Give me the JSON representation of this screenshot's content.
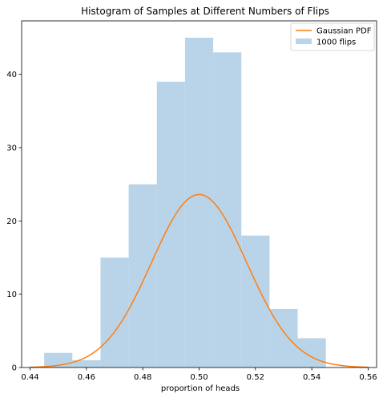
{
  "chart_data": {
    "type": "bar",
    "title": "Histogram of Samples at Different Numbers of Flips",
    "xlabel": "proportion of heads",
    "ylabel": "",
    "xlim": [
      0.437,
      0.563
    ],
    "ylim": [
      0,
      47.3
    ],
    "x_ticks": [
      0.44,
      0.46,
      0.48,
      0.5,
      0.52,
      0.54,
      0.56
    ],
    "x_tick_labels": [
      "0.44",
      "0.46",
      "0.48",
      "0.50",
      "0.52",
      "0.54",
      "0.56"
    ],
    "y_ticks": [
      0,
      10,
      20,
      30,
      40
    ],
    "y_tick_labels": [
      "0",
      "10",
      "20",
      "30",
      "40"
    ],
    "grid": false,
    "legend_position": "top-right",
    "series": [
      {
        "name": "1000 flips",
        "kind": "histogram",
        "color": "#b9d4e8",
        "bins": [
          {
            "x0": 0.445,
            "x1": 0.455,
            "count": 2
          },
          {
            "x0": 0.455,
            "x1": 0.465,
            "count": 1
          },
          {
            "x0": 0.465,
            "x1": 0.475,
            "count": 15
          },
          {
            "x0": 0.475,
            "x1": 0.485,
            "count": 25
          },
          {
            "x0": 0.485,
            "x1": 0.495,
            "count": 39
          },
          {
            "x0": 0.495,
            "x1": 0.505,
            "count": 45
          },
          {
            "x0": 0.505,
            "x1": 0.515,
            "count": 43
          },
          {
            "x0": 0.515,
            "x1": 0.525,
            "count": 18
          },
          {
            "x0": 0.525,
            "x1": 0.535,
            "count": 8
          },
          {
            "x0": 0.535,
            "x1": 0.545,
            "count": 4
          }
        ]
      },
      {
        "name": "Gaussian PDF",
        "kind": "line",
        "color": "#ff7f0e",
        "mean": 0.5,
        "std": 0.0169,
        "x_range": [
          0.44,
          0.56
        ]
      }
    ]
  }
}
